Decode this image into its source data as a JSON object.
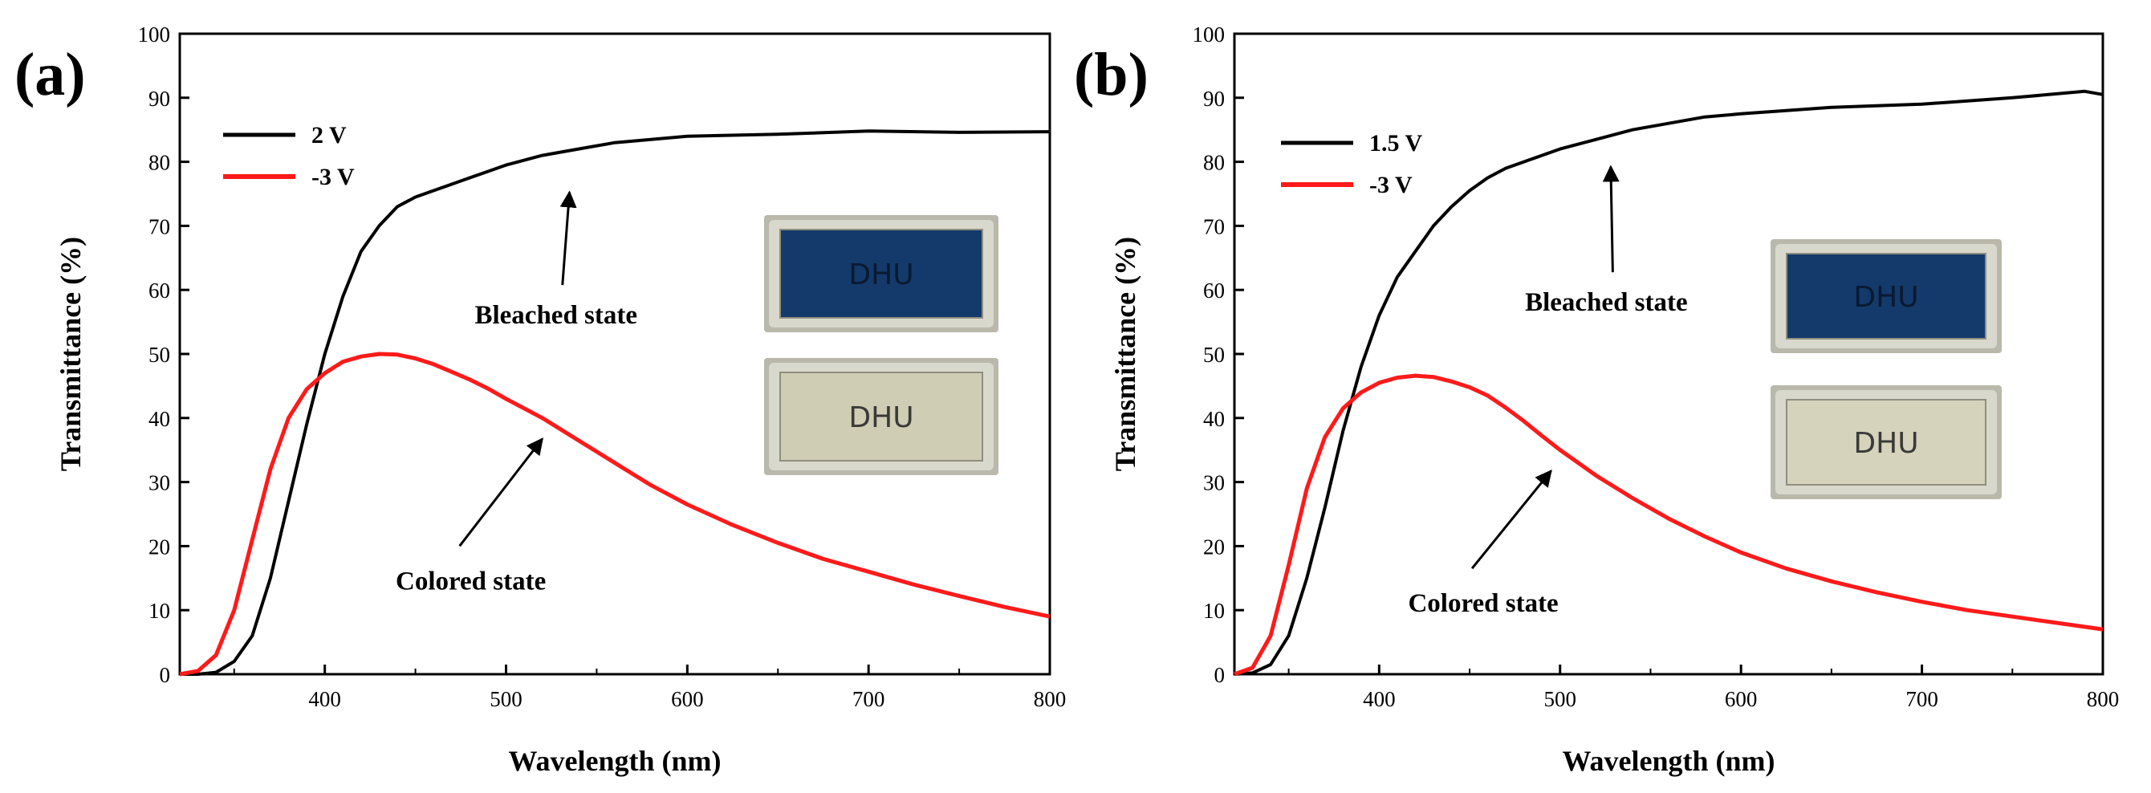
{
  "chart_data": [
    {
      "panel_label": "(a)",
      "type": "line",
      "xlabel": "Wavelength (nm)",
      "ylabel": "Transmittance (%)",
      "xlim": [
        320,
        800
      ],
      "ylim": [
        0,
        100
      ],
      "xticks": [
        400,
        500,
        600,
        700,
        800
      ],
      "yticks": [
        0,
        10,
        20,
        30,
        40,
        50,
        60,
        70,
        80,
        90,
        100
      ],
      "legend": [
        "2 V",
        "-3 V"
      ],
      "colors": [
        "#000000",
        "#ff1a1a"
      ],
      "series": [
        {
          "name": "2 V",
          "x": [
            320,
            330,
            340,
            350,
            360,
            370,
            380,
            390,
            400,
            410,
            420,
            430,
            440,
            450,
            460,
            470,
            480,
            490,
            500,
            520,
            540,
            560,
            580,
            600,
            650,
            700,
            750,
            800
          ],
          "values": [
            0,
            0,
            0.3,
            2,
            6,
            15,
            27,
            39,
            50,
            59,
            66,
            70,
            73,
            74.5,
            75.5,
            76.5,
            77.5,
            78.5,
            79.5,
            81,
            82,
            83,
            83.5,
            84,
            84.3,
            84.8,
            84.6,
            84.7
          ]
        },
        {
          "name": "-3 V",
          "x": [
            320,
            330,
            340,
            350,
            360,
            370,
            380,
            390,
            400,
            410,
            420,
            430,
            440,
            450,
            460,
            470,
            480,
            490,
            500,
            520,
            540,
            560,
            580,
            600,
            625,
            650,
            675,
            700,
            725,
            750,
            775,
            800
          ],
          "values": [
            0,
            0.5,
            3,
            10,
            21,
            32,
            40,
            44.5,
            47,
            48.8,
            49.6,
            50,
            49.9,
            49.3,
            48.4,
            47.2,
            46,
            44.6,
            43,
            40,
            36.5,
            33,
            29.5,
            26.5,
            23.3,
            20.5,
            18,
            16,
            14,
            12.2,
            10.5,
            9
          ]
        }
      ],
      "annotations": [
        {
          "text": "Bleached state",
          "target_x": 535,
          "target_y": 76,
          "label_x": 532,
          "label_y": 56
        },
        {
          "text": "Colored state",
          "target_x": 520,
          "target_y": 37.5,
          "label_x": 485,
          "label_y": 14.5
        }
      ],
      "insets": [
        {
          "state": "colored",
          "label": "DHU",
          "color": "#133a6b"
        },
        {
          "state": "bleached",
          "label": "DHU",
          "color": "#cfcdb3"
        }
      ]
    },
    {
      "panel_label": "(b)",
      "type": "line",
      "xlabel": "Wavelength (nm)",
      "ylabel": "Transmittance (%)",
      "xlim": [
        320,
        800
      ],
      "ylim": [
        0,
        100
      ],
      "xticks": [
        400,
        500,
        600,
        700,
        800
      ],
      "yticks": [
        0,
        10,
        20,
        30,
        40,
        50,
        60,
        70,
        80,
        90,
        100
      ],
      "legend": [
        "1.5 V",
        "-3 V"
      ],
      "colors": [
        "#000000",
        "#ff1a1a"
      ],
      "series": [
        {
          "name": "1.5 V",
          "x": [
            320,
            330,
            340,
            350,
            360,
            370,
            380,
            390,
            400,
            410,
            420,
            430,
            440,
            450,
            460,
            470,
            480,
            490,
            500,
            520,
            540,
            560,
            580,
            600,
            650,
            700,
            750,
            770,
            790,
            800
          ],
          "values": [
            0,
            0.2,
            1.5,
            6,
            15,
            26,
            38,
            48,
            56,
            62,
            66,
            70,
            73,
            75.5,
            77.5,
            79,
            80,
            81,
            82,
            83.5,
            85,
            86,
            87,
            87.5,
            88.5,
            89,
            90,
            90.5,
            91,
            90.5
          ]
        },
        {
          "name": "-3 V",
          "x": [
            320,
            330,
            340,
            350,
            360,
            370,
            380,
            390,
            400,
            410,
            420,
            430,
            440,
            450,
            460,
            470,
            480,
            490,
            500,
            520,
            540,
            560,
            580,
            600,
            625,
            650,
            675,
            700,
            725,
            750,
            775,
            800
          ],
          "values": [
            0,
            1,
            6,
            17,
            29,
            37,
            41.5,
            44,
            45.5,
            46.3,
            46.6,
            46.4,
            45.7,
            44.8,
            43.5,
            41.6,
            39.5,
            37.2,
            35,
            31,
            27.5,
            24.3,
            21.5,
            19,
            16.5,
            14.5,
            12.8,
            11.3,
            10,
            9,
            8,
            7
          ]
        }
      ],
      "annotations": [
        {
          "text": "Bleached state",
          "target_x": 528,
          "target_y": 80,
          "label_x": 530,
          "label_y": 58
        },
        {
          "text": "Colored state",
          "target_x": 495,
          "target_y": 32.5,
          "label_x": 462,
          "label_y": 11
        }
      ],
      "insets": [
        {
          "state": "colored",
          "label": "DHU",
          "color": "#133a6b"
        },
        {
          "state": "bleached",
          "label": "DHU",
          "color": "#d6d3bc"
        }
      ]
    }
  ]
}
